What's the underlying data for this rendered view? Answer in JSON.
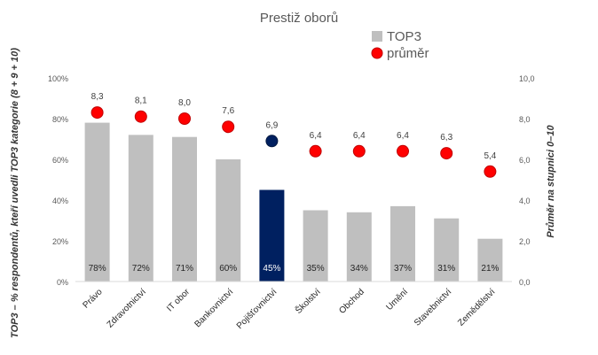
{
  "chart_data": {
    "type": "bar",
    "title": "Prestiž oborů",
    "categories": [
      "Právo",
      "Zdravotnictví",
      "IT obor",
      "Bankovnictví",
      "Pojišťovnictví",
      "Školství",
      "Obchod",
      "Umění",
      "Stavebnictví",
      "Zemědělství"
    ],
    "series": [
      {
        "name": "TOP3",
        "axis": "left",
        "values": [
          78,
          72,
          71,
          60,
          45,
          35,
          34,
          37,
          31,
          21
        ],
        "data_labels": [
          "78%",
          "72%",
          "71%",
          "60%",
          "45%",
          "35%",
          "34%",
          "37%",
          "31%",
          "21%"
        ],
        "color": "#bfbfbf",
        "highlight_color": "#002060",
        "highlight_index": 4
      },
      {
        "name": "průměr",
        "axis": "right",
        "marker": "circle",
        "values": [
          8.3,
          8.1,
          8.0,
          7.6,
          6.9,
          6.4,
          6.4,
          6.4,
          6.3,
          5.4
        ],
        "data_labels": [
          "8,3",
          "8,1",
          "8,0",
          "7,6",
          "6,9",
          "6,4",
          "6,4",
          "6,4",
          "6,3",
          "5,4"
        ],
        "color": "#ff0000",
        "highlight_color": "#002060",
        "highlight_index": 4
      }
    ],
    "ylabel": "TOP3 – % respondentů, kteří uvedli TOP3 kategorie (8 + 9 + 10)",
    "y2label": "Průměr na stupnici 0–10",
    "ylim": [
      0,
      100
    ],
    "y2lim": [
      0,
      10
    ],
    "yticks": [
      "0%",
      "20%",
      "40%",
      "60%",
      "80%",
      "100%"
    ],
    "y2ticks": [
      "0,0",
      "2,0",
      "4,0",
      "6,0",
      "8,0",
      "10,0"
    ],
    "legend_position": "top-right",
    "grid": false
  }
}
